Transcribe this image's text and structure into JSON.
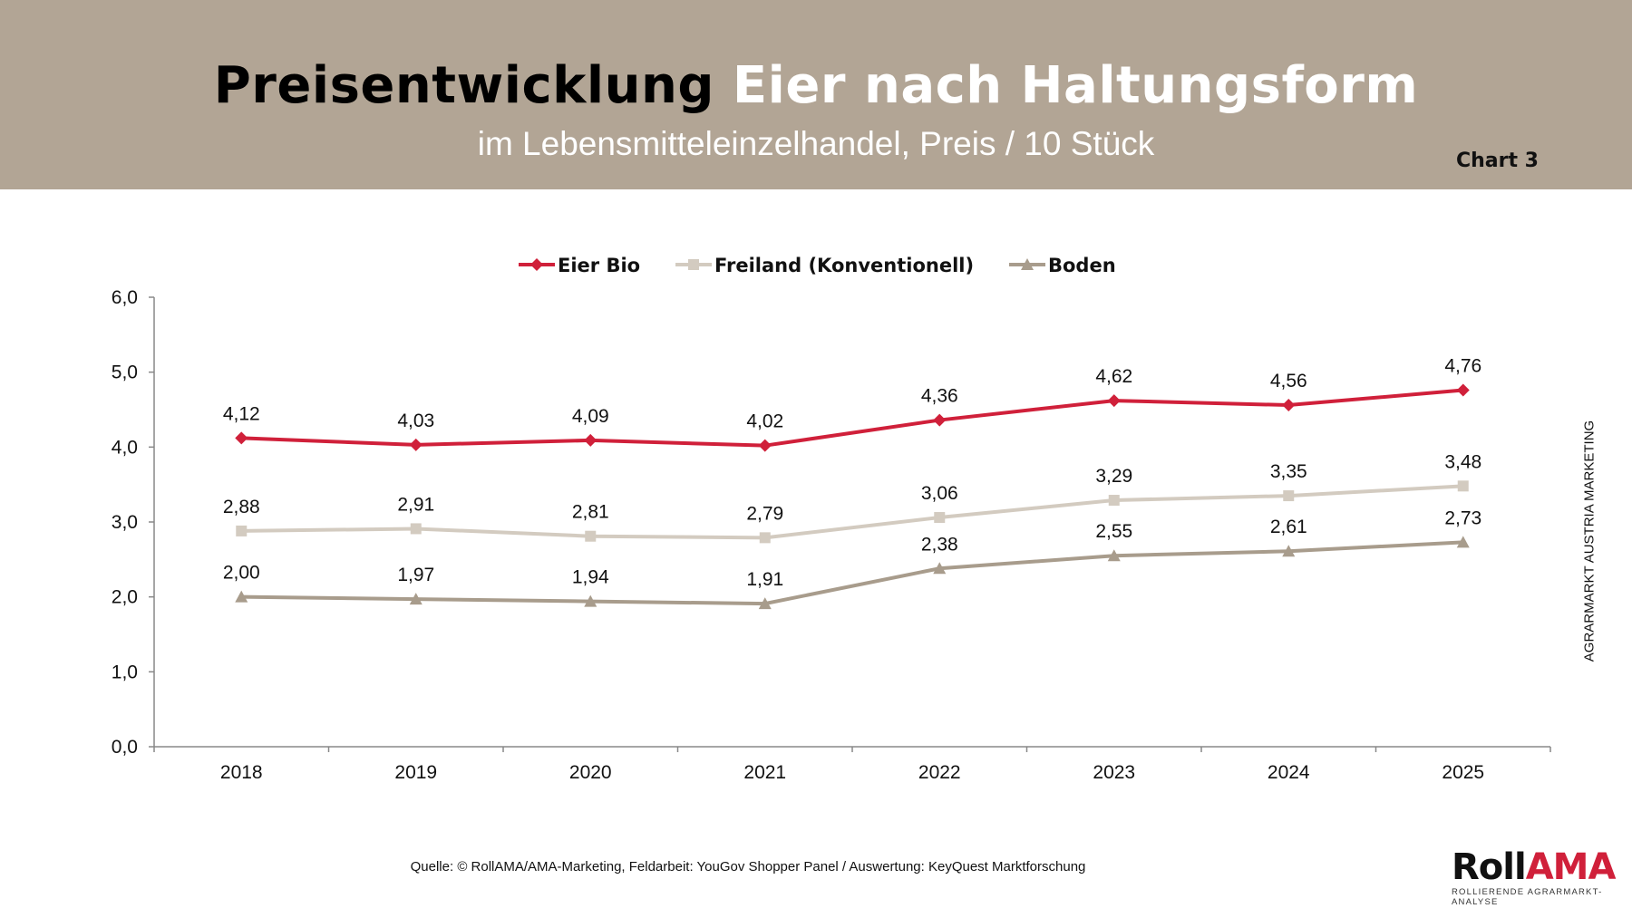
{
  "header": {
    "title_part1": "Preisentwicklung",
    "title_part2": "Eier nach Haltungsform",
    "subtitle": "im Lebensmitteleinzelhandel, Preis / 10 Stück",
    "chart_number": "Chart 3"
  },
  "side_label": "AGRARMARKT AUSTRIA MARKETING",
  "source": "Quelle: © RollAMA/AMA-Marketing, Feldarbeit: YouGov Shopper Panel / Auswertung: KeyQuest Marktforschung",
  "logo": {
    "text_dark": "Roll",
    "text_red": "AMA",
    "tagline": "ROLLIERENDE AGRARMARKT-ANALYSE"
  },
  "chart_data": {
    "type": "line",
    "categories": [
      "2018",
      "2019",
      "2020",
      "2021",
      "2022",
      "2023",
      "2024",
      "2025"
    ],
    "ylim": [
      0,
      6
    ],
    "yticks": [
      "0,0",
      "1,0",
      "2,0",
      "3,0",
      "4,0",
      "5,0",
      "6,0"
    ],
    "legend_position": "top",
    "grid": false,
    "series": [
      {
        "name": "Eier Bio",
        "color": "#d0203a",
        "marker": "diamond",
        "values": [
          4.12,
          4.03,
          4.09,
          4.02,
          4.36,
          4.62,
          4.56,
          4.76
        ],
        "labels": [
          "4,12",
          "4,03",
          "4,09",
          "4,02",
          "4,36",
          "4,62",
          "4,56",
          "4,76"
        ]
      },
      {
        "name": "Freiland (Konventionell)",
        "color": "#d3cbc0",
        "marker": "square",
        "values": [
          2.88,
          2.91,
          2.81,
          2.79,
          3.06,
          3.29,
          3.35,
          3.48
        ],
        "labels": [
          "2,88",
          "2,91",
          "2,81",
          "2,79",
          "3,06",
          "3,29",
          "3,35",
          "3,48"
        ]
      },
      {
        "name": "Boden",
        "color": "#a89c8c",
        "marker": "triangle",
        "values": [
          2.0,
          1.97,
          1.94,
          1.91,
          2.38,
          2.55,
          2.61,
          2.73
        ],
        "labels": [
          "2,00",
          "1,97",
          "1,94",
          "1,91",
          "2,38",
          "2,55",
          "2,61",
          "2,73"
        ]
      }
    ]
  }
}
